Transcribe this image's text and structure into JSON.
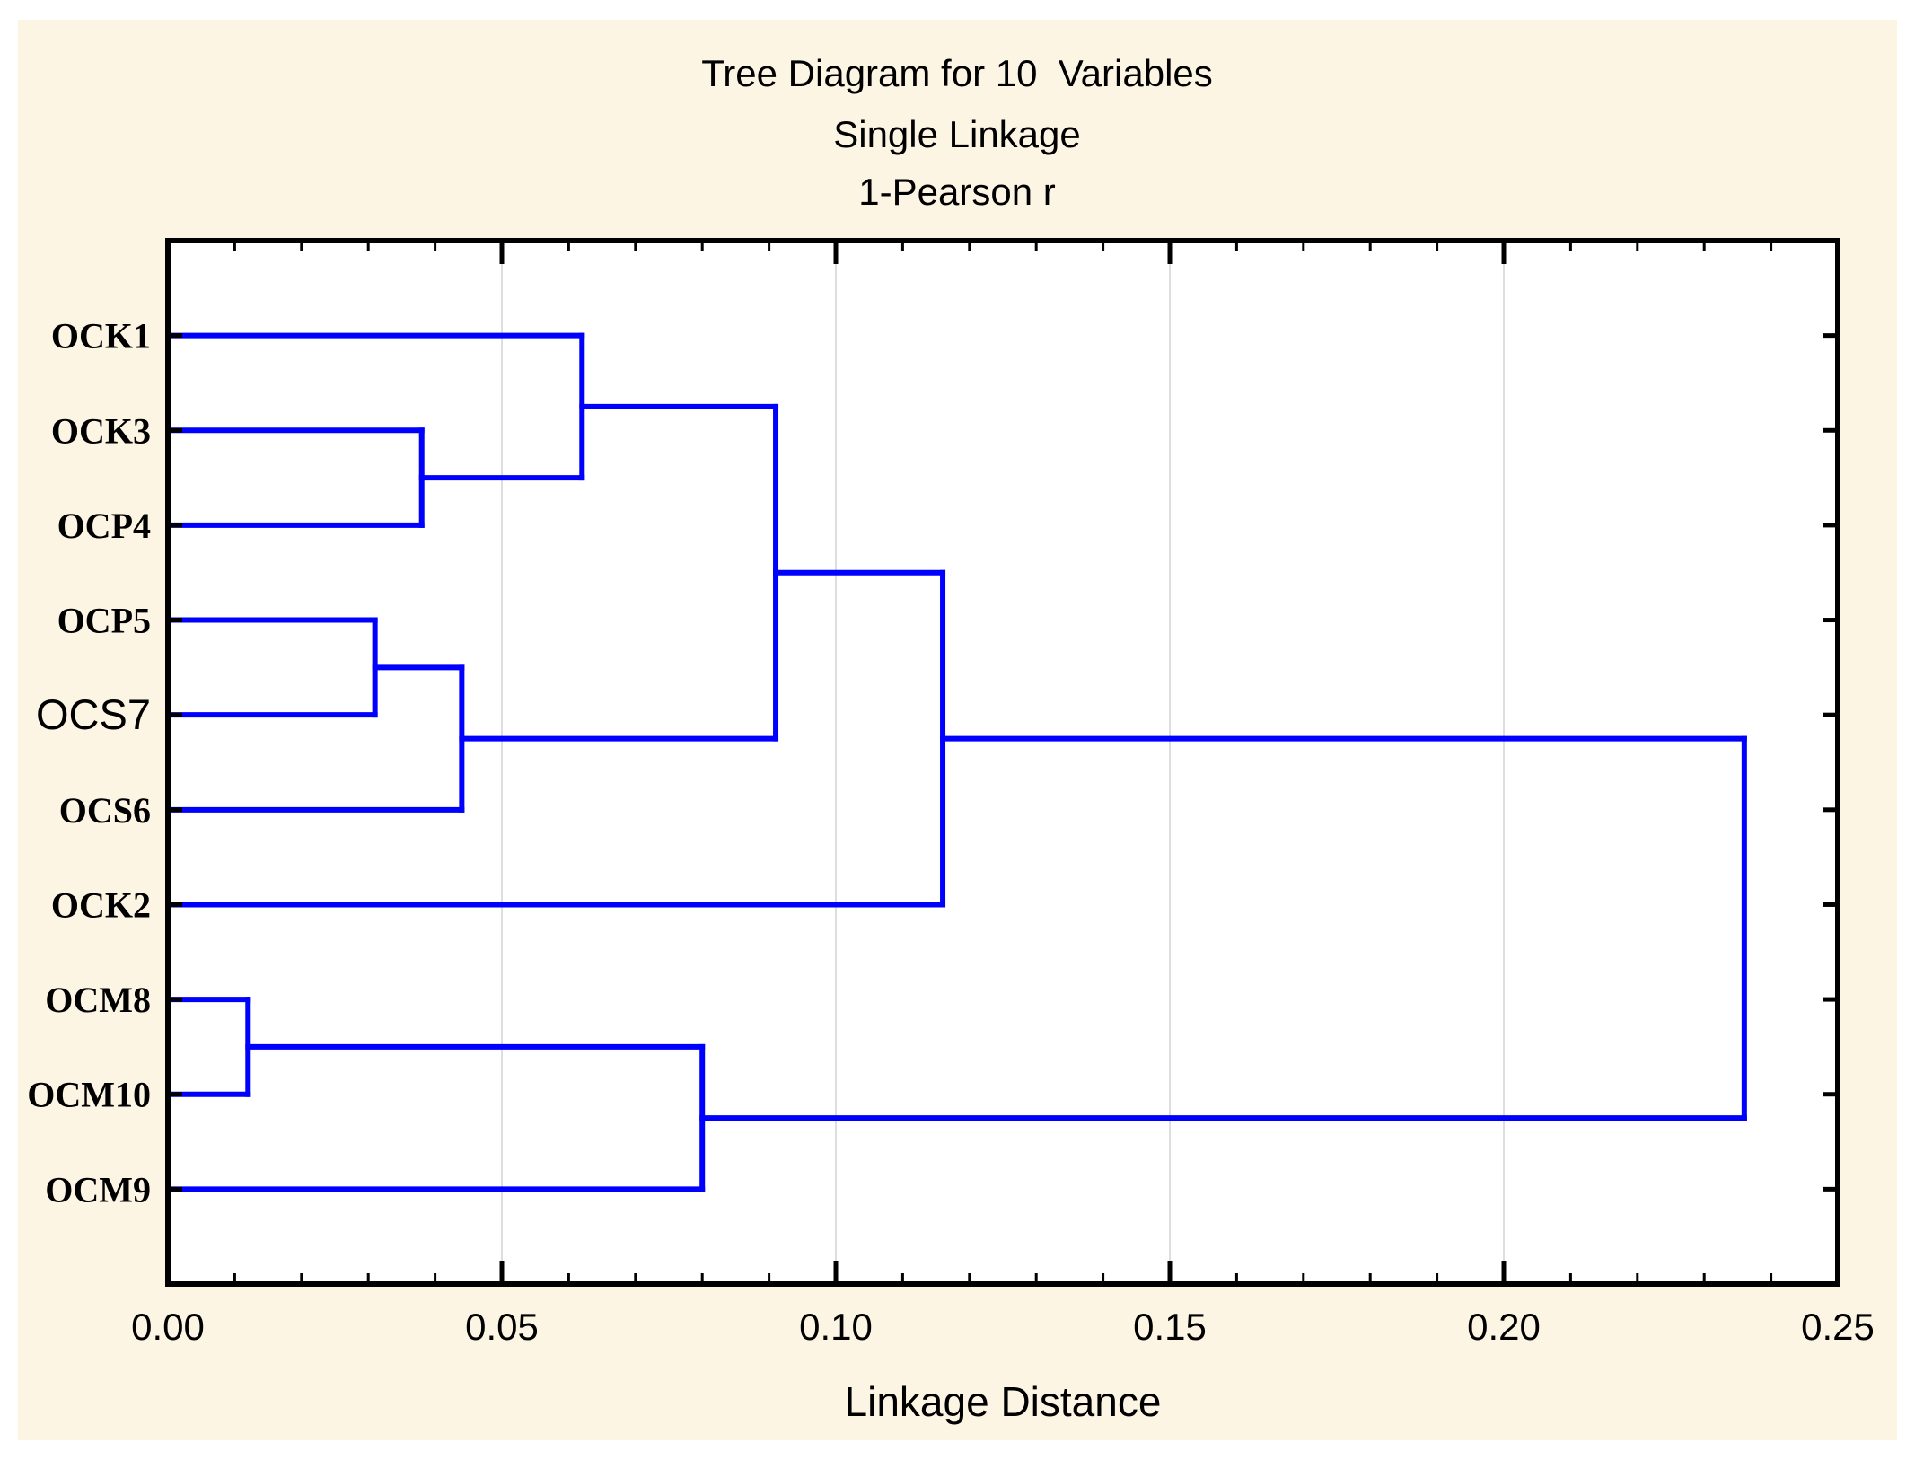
{
  "figure": {
    "title_lines": [
      "Tree Diagram for 10  Variables",
      "Single Linkage",
      "1-Pearson r"
    ],
    "x_axis_label": "Linkage Distance"
  },
  "chart_data": {
    "type": "dendrogram",
    "orientation": "horizontal",
    "title": "Tree Diagram for 10  Variables",
    "subtitle1": "Single Linkage",
    "subtitle2": "1-Pearson r",
    "xlabel": "Linkage Distance",
    "leaves": [
      "OCK1",
      "OCK3",
      "OCP4",
      "OCP5",
      "OCS7",
      "OCS6",
      "OCK2",
      "OCM8",
      "OCM10",
      "OCM9"
    ],
    "leaf_label_styles": {
      "OCS7": "large-sans"
    },
    "merges": [
      {
        "id": "m1",
        "a": "OCK3",
        "b": "OCP4",
        "distance": 0.038
      },
      {
        "id": "m2",
        "a": "OCK1",
        "b": "m1",
        "distance": 0.062
      },
      {
        "id": "m3",
        "a": "OCP5",
        "b": "OCS7",
        "distance": 0.031
      },
      {
        "id": "m4",
        "a": "m3",
        "b": "OCS6",
        "distance": 0.044
      },
      {
        "id": "m5",
        "a": "m2",
        "b": "m4",
        "distance": 0.091
      },
      {
        "id": "m6",
        "a": "m5",
        "b": "OCK2",
        "distance": 0.116
      },
      {
        "id": "m7",
        "a": "OCM8",
        "b": "OCM10",
        "distance": 0.012
      },
      {
        "id": "m8",
        "a": "m7",
        "b": "OCM9",
        "distance": 0.08
      },
      {
        "id": "m9",
        "a": "m6",
        "b": "m8",
        "distance": 0.236
      }
    ],
    "x_axis": {
      "min": 0.0,
      "max": 0.25,
      "major_tick_labels": [
        "0.00",
        "0.05",
        "0.10",
        "0.15",
        "0.20",
        "0.25"
      ],
      "major_tick_values": [
        0.0,
        0.05,
        0.1,
        0.15,
        0.2,
        0.25
      ],
      "minor_tick_step": 0.01,
      "gridlines_at": [
        0.05,
        0.1,
        0.15,
        0.2
      ]
    },
    "colors": {
      "tree": "#0000FF",
      "frame": "#000000",
      "grid": "#DEDEDE",
      "panel_background": "#FDF5E4",
      "plot_background": "#FFFFFF",
      "text": "#000000"
    }
  }
}
